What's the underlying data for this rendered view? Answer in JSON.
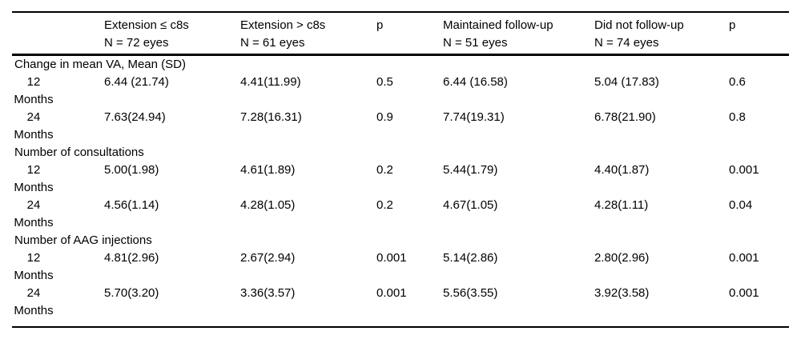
{
  "page": {
    "background_color": "#ffffff",
    "text_color": "#000000",
    "rule_color": "#000000"
  },
  "table": {
    "columns": [
      {
        "line1": "",
        "line2": ""
      },
      {
        "line1": "Extension ≤ c8s",
        "line2": "N = 72 eyes"
      },
      {
        "line1": "Extension > c8s",
        "line2": "N = 61 eyes"
      },
      {
        "line1": "p",
        "line2": ""
      },
      {
        "line1": "Maintained follow-up",
        "line2": "N = 51 eyes"
      },
      {
        "line1": "Did not follow-up",
        "line2": "N = 74 eyes"
      },
      {
        "line1": "p",
        "line2": ""
      }
    ],
    "sections": [
      {
        "title": "Change in mean VA, Mean (SD)",
        "rows": [
          {
            "label": "12 Months",
            "values": [
              "6.44 (21.74)",
              "4.41(11.99)",
              "0.5",
              "6.44 (16.58)",
              "5.04 (17.83)",
              "0.6"
            ]
          },
          {
            "label": "24 Months",
            "values": [
              "7.63(24.94)",
              "7.28(16.31)",
              "0.9",
              "7.74(19.31)",
              "6.78(21.90)",
              "0.8"
            ]
          }
        ]
      },
      {
        "title": "Number of consultations",
        "rows": [
          {
            "label": "12 Months",
            "values": [
              "5.00(1.98)",
              "4.61(1.89)",
              "0.2",
              "5.44(1.79)",
              "4.40(1.87)",
              "0.001"
            ]
          },
          {
            "label": "24 Months",
            "values": [
              "4.56(1.14)",
              "4.28(1.05)",
              "0.2",
              "4.67(1.05)",
              "4.28(1.11)",
              "0.04"
            ]
          }
        ]
      },
      {
        "title": "Number of AAG injections",
        "rows": [
          {
            "label": "12 Months",
            "values": [
              "4.81(2.96)",
              "2.67(2.94)",
              "0.001",
              "5.14(2.86)",
              "2.80(2.96)",
              "0.001"
            ]
          },
          {
            "label": "24 Months",
            "values": [
              "5.70(3.20)",
              "3.36(3.57)",
              "0.001",
              "5.56(3.55)",
              "3.92(3.58)",
              "0.001"
            ]
          }
        ]
      }
    ]
  }
}
